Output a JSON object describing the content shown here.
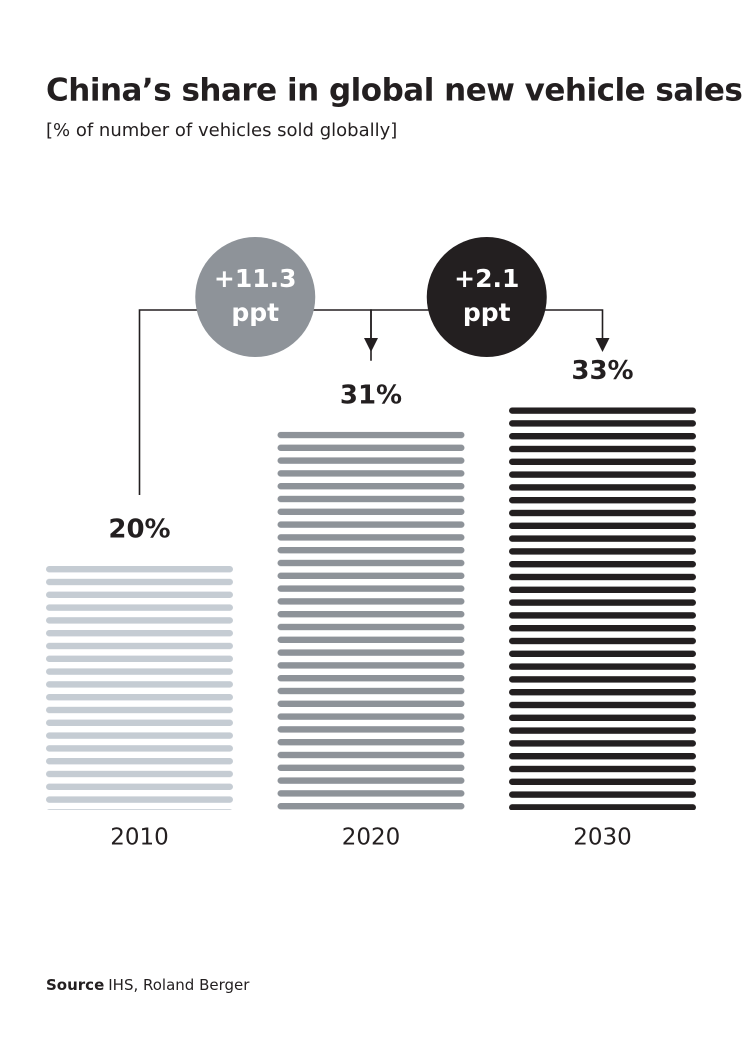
{
  "chart_data": {
    "type": "bar",
    "title": "China’s share in global new vehicle sales",
    "subtitle": "[% of number of vehicles sold globally]",
    "categories": [
      "2010",
      "2020",
      "2030"
    ],
    "values": [
      20,
      31,
      33
    ],
    "value_labels": [
      "20%",
      "31%",
      "33%"
    ],
    "colors": [
      "#c5ccd3",
      "#8e9399",
      "#231f20"
    ],
    "annotations": [
      {
        "text": "+11.3",
        "unit": "ppt",
        "color": "#8e9399"
      },
      {
        "text": "+2.1",
        "unit": "ppt",
        "color": "#231f20"
      }
    ],
    "source": {
      "label": "Source",
      "text": "IHS, Roland Berger"
    }
  }
}
